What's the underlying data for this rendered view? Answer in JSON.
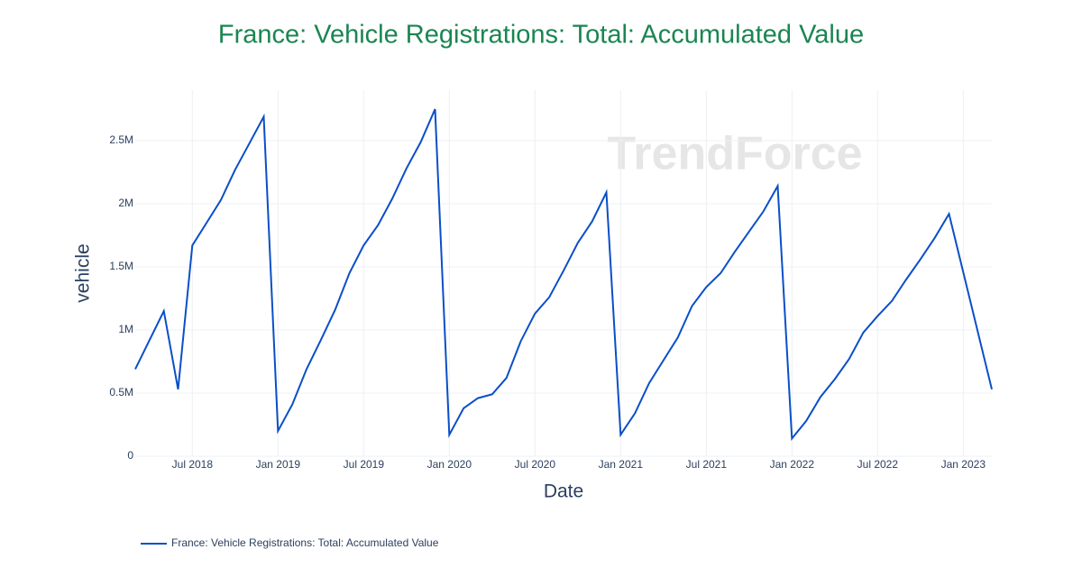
{
  "chart_data": {
    "type": "line",
    "title": "France: Vehicle Registrations: Total: Accumulated Value",
    "watermark": "TrendForce",
    "x_label": "Date",
    "y_label": "vehicle",
    "x": [
      "2018-03",
      "2018-05",
      "2018-06",
      "2018-07",
      "2018-08",
      "2018-09",
      "2018-10",
      "2018-11",
      "2018-12",
      "2019-01",
      "2019-02",
      "2019-03",
      "2019-04",
      "2019-05",
      "2019-06",
      "2019-07",
      "2019-08",
      "2019-09",
      "2019-10",
      "2019-11",
      "2019-12",
      "2020-01",
      "2020-02",
      "2020-03",
      "2020-04",
      "2020-05",
      "2020-06",
      "2020-07",
      "2020-08",
      "2020-09",
      "2020-10",
      "2020-11",
      "2020-12",
      "2021-01",
      "2021-02",
      "2021-03",
      "2021-04",
      "2021-05",
      "2021-06",
      "2021-07",
      "2021-08",
      "2021-09",
      "2021-10",
      "2021-11",
      "2021-12",
      "2022-01",
      "2022-02",
      "2022-03",
      "2022-04",
      "2022-05",
      "2022-06",
      "2022-07",
      "2022-08",
      "2022-09",
      "2022-10",
      "2022-11",
      "2022-12",
      "2023-03"
    ],
    "series": [
      {
        "name": "France: Vehicle Registrations: Total: Accumulated Value",
        "color": "#0a4fc8",
        "values": [
          690000,
          1150000,
          530000,
          1670000,
          1850000,
          2030000,
          2270000,
          2480000,
          2690000,
          200000,
          410000,
          690000,
          920000,
          1160000,
          1450000,
          1670000,
          1830000,
          2040000,
          2280000,
          2490000,
          2750000,
          170000,
          380000,
          460000,
          490000,
          620000,
          910000,
          1130000,
          1260000,
          1470000,
          1690000,
          1860000,
          2090000,
          170000,
          340000,
          580000,
          760000,
          940000,
          1190000,
          1340000,
          1450000,
          1620000,
          1780000,
          1940000,
          2140000,
          140000,
          280000,
          470000,
          610000,
          770000,
          980000,
          1110000,
          1230000,
          1400000,
          1560000,
          1730000,
          1920000,
          530000
        ]
      }
    ],
    "xlim": [
      "2018-03",
      "2023-03"
    ],
    "xticks": [
      {
        "value": "2018-07",
        "label": "Jul 2018"
      },
      {
        "value": "2019-01",
        "label": "Jan 2019"
      },
      {
        "value": "2019-07",
        "label": "Jul 2019"
      },
      {
        "value": "2020-01",
        "label": "Jan 2020"
      },
      {
        "value": "2020-07",
        "label": "Jul 2020"
      },
      {
        "value": "2021-01",
        "label": "Jan 2021"
      },
      {
        "value": "2021-07",
        "label": "Jul 2021"
      },
      {
        "value": "2022-01",
        "label": "Jan 2022"
      },
      {
        "value": "2022-07",
        "label": "Jul 2022"
      },
      {
        "value": "2023-01",
        "label": "Jan 2023"
      }
    ],
    "ylim": [
      0,
      2900000
    ],
    "yticks": [
      0,
      {
        "value": 500000,
        "label": "0.5M"
      },
      {
        "value": 1000000,
        "label": "1M"
      },
      {
        "value": 1500000,
        "label": "1.5M"
      },
      {
        "value": 2000000,
        "label": "2M"
      },
      {
        "value": 2500000,
        "label": "2.5M"
      }
    ],
    "grid": true
  }
}
